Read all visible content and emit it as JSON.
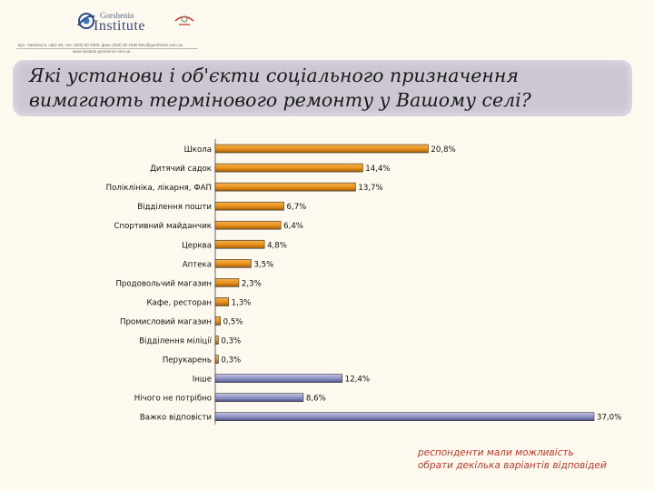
{
  "header": {
    "logo_line1": "Gorshenin",
    "logo_line2": "Institute",
    "contact_line1": "вул. Чапаєва 5, офіс 49, тел. (353) 80 0000, факс (353) 80 1530 kiev@gorshenin.com.ua",
    "contact_line2": "www.institute.gorshenin.com.ua",
    "logo_icon": "eye-logo-icon",
    "emblem_icon": "emblem-icon"
  },
  "title": {
    "line1": "Які установи і об'єкти соціального призначення",
    "line2": "вимагають термінового ремонту у Вашому селі?"
  },
  "note": {
    "line1": "респонденти мали можливість",
    "line2": "обрати декілька варіантів відповідей"
  },
  "colors": {
    "orange_bar": "#e8901c",
    "blue_bar": "#8c90c2",
    "note_text": "#c0392b"
  },
  "chart_data": {
    "type": "bar",
    "orientation": "horizontal",
    "unit": "%",
    "xlim": [
      0,
      37
    ],
    "grid": false,
    "bars": [
      {
        "label": "Школа",
        "value": 20.8,
        "value_label": "20,8%",
        "group": "orange"
      },
      {
        "label": "Дитячий садок",
        "value": 14.4,
        "value_label": "14,4%",
        "group": "orange"
      },
      {
        "label": "Поліклініка, лікарня, ФАП",
        "value": 13.7,
        "value_label": "13,7%",
        "group": "orange"
      },
      {
        "label": "Відділення пошти",
        "value": 6.7,
        "value_label": "6,7%",
        "group": "orange"
      },
      {
        "label": "Спортивний майданчик",
        "value": 6.4,
        "value_label": "6,4%",
        "group": "orange"
      },
      {
        "label": "Церква",
        "value": 4.8,
        "value_label": "4,8%",
        "group": "orange"
      },
      {
        "label": "Аптека",
        "value": 3.5,
        "value_label": "3,5%",
        "group": "orange"
      },
      {
        "label": "Продовольчий магазин",
        "value": 2.3,
        "value_label": "2,3%",
        "group": "orange"
      },
      {
        "label": "Кафе, ресторан",
        "value": 1.3,
        "value_label": "1,3%",
        "group": "orange"
      },
      {
        "label": "Промисловий магазин",
        "value": 0.5,
        "value_label": "0,5%",
        "group": "orange"
      },
      {
        "label": "Відділення міліції",
        "value": 0.3,
        "value_label": "0,3%",
        "group": "orange"
      },
      {
        "label": "Перукарень",
        "value": 0.3,
        "value_label": "0,3%",
        "group": "orange"
      },
      {
        "label": "Інше",
        "value": 12.4,
        "value_label": "12,4%",
        "group": "blue"
      },
      {
        "label": "Нічого не потрібно",
        "value": 8.6,
        "value_label": "8,6%",
        "group": "blue"
      },
      {
        "label": "Важко відповісти",
        "value": 37.0,
        "value_label": "37,0%",
        "group": "blue"
      }
    ]
  }
}
